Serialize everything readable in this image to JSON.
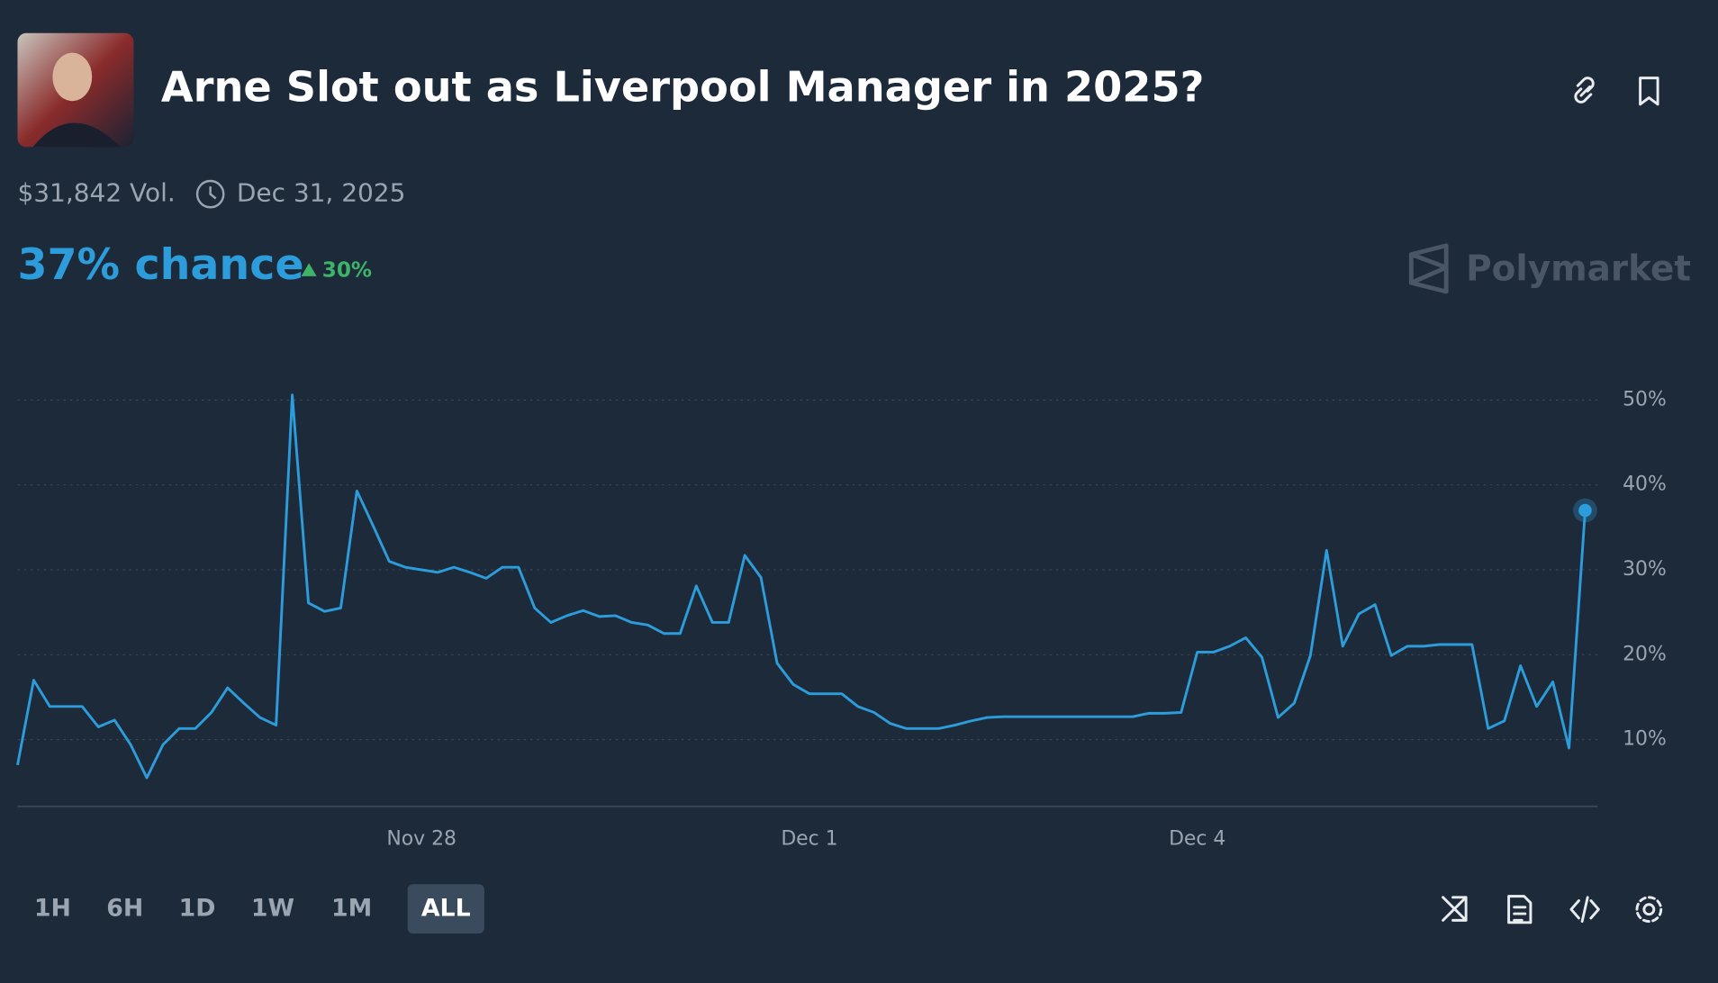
{
  "header": {
    "title": "Arne Slot out as Liverpool Manager in 2025?",
    "volume": "$31,842 Vol.",
    "end_date": "Dec 31, 2025",
    "chance": "37% chance",
    "change": "30%",
    "brand": "Polymarket"
  },
  "ranges": [
    "1H",
    "6H",
    "1D",
    "1W",
    "1M",
    "ALL"
  ],
  "chart_data": {
    "type": "line",
    "color": "#2d9cdb",
    "grid": true,
    "categories": [
      null,
      null,
      null,
      null,
      null,
      null,
      null,
      null,
      null,
      null,
      null,
      null,
      null,
      null,
      null,
      null,
      null,
      null,
      null,
      null,
      null,
      null,
      null,
      null,
      null,
      "Nov 28",
      null,
      null,
      null,
      null,
      null,
      null,
      null,
      null,
      null,
      null,
      null,
      null,
      null,
      null,
      null,
      null,
      null,
      null,
      null,
      null,
      null,
      null,
      null,
      "Dec 1",
      null,
      null,
      null,
      null,
      null,
      null,
      null,
      null,
      null,
      null,
      null,
      null,
      null,
      null,
      null,
      null,
      null,
      null,
      null,
      null,
      null,
      null,
      null,
      "Dec 4",
      null,
      null,
      null,
      null,
      null,
      null,
      null,
      null,
      null,
      null,
      null,
      null,
      null,
      null,
      null,
      null,
      null,
      null,
      null,
      null,
      null,
      null,
      null,
      null
    ],
    "values": [
      7,
      17,
      13.9,
      13.9,
      13.9,
      11.5,
      12.3,
      9.4,
      5.5,
      9.4,
      11.3,
      11.3,
      13.2,
      16.1,
      14.3,
      12.6,
      11.7,
      50.6,
      26.1,
      25.1,
      25.5,
      39.3,
      35.2,
      31,
      30.3,
      30,
      29.7,
      30.3,
      29.7,
      29,
      30.3,
      30.3,
      25.5,
      23.8,
      24.6,
      25.2,
      24.5,
      24.6,
      23.8,
      23.5,
      22.5,
      22.5,
      28.1,
      23.8,
      23.8,
      31.7,
      29.1,
      19,
      16.5,
      15.4,
      15.4,
      15.4,
      13.9,
      13.2,
      11.9,
      11.3,
      11.3,
      11.3,
      11.7,
      12.2,
      12.6,
      12.7,
      12.7,
      12.7,
      12.7,
      12.7,
      12.7,
      12.7,
      12.7,
      12.7,
      13.1,
      13.1,
      13.2,
      20.3,
      20.3,
      21,
      22,
      19.7,
      12.6,
      14.3,
      19.9,
      32.3,
      21,
      24.8,
      25.9,
      19.9,
      21,
      21,
      21.2,
      21.2,
      21.2,
      11.3,
      12.2,
      18.7,
      13.9,
      16.8,
      9,
      37
    ],
    "ylim": [
      2,
      53
    ],
    "yticks": [
      {
        "value": 10,
        "label": "10%"
      },
      {
        "value": 20,
        "label": "20%"
      },
      {
        "value": 30,
        "label": "30%"
      },
      {
        "value": 40,
        "label": "40%"
      },
      {
        "value": 50,
        "label": "50%"
      }
    ]
  }
}
